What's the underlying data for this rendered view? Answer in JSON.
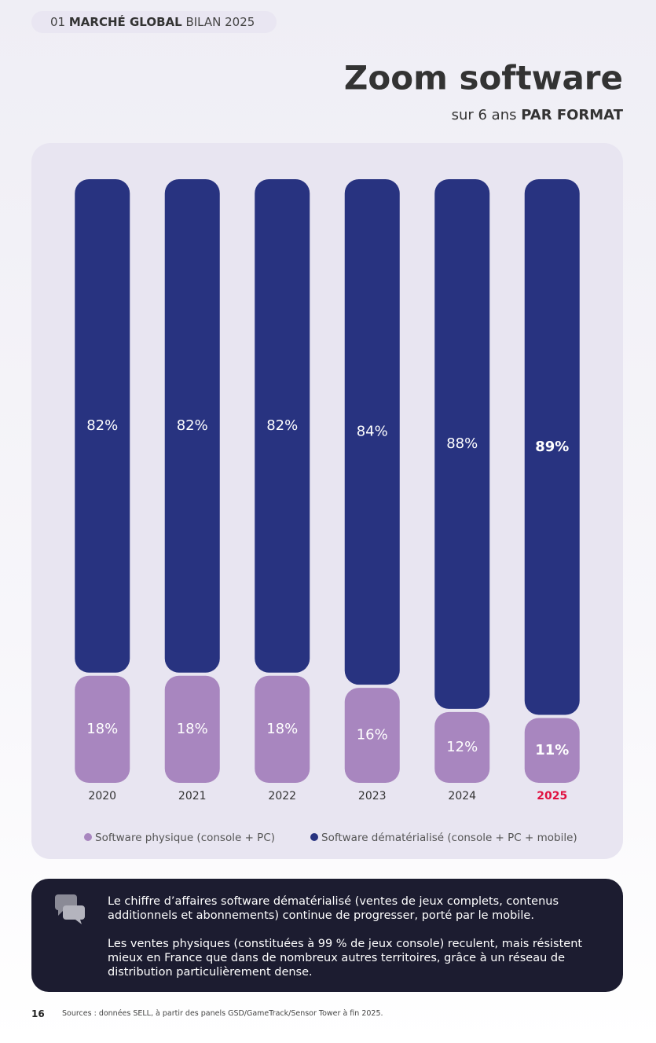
{
  "header": {
    "number": "01",
    "section": "MARCHÉ GLOBAL",
    "label": "BILAN 2025"
  },
  "chart_data": {
    "type": "stacked-bar",
    "title": "Zoom software",
    "subtitle": {
      "prefix": "sur 6 ans",
      "emphasis": "PAR FORMAT"
    },
    "categories": [
      "2020",
      "2021",
      "2022",
      "2023",
      "2024",
      "2025"
    ],
    "series": [
      {
        "name": "Software physique (console + PC)",
        "color": "#a886bf",
        "values": [
          18,
          18,
          18,
          16,
          12,
          11
        ],
        "value_labels": [
          "18%",
          "18%",
          "18%",
          "16%",
          "12%",
          "11%"
        ]
      },
      {
        "name": "Software dématérialisé (console + PC + mobile)",
        "color": "#283380",
        "values": [
          82,
          82,
          82,
          84,
          88,
          89
        ],
        "value_labels": [
          "82%",
          "82%",
          "82%",
          "84%",
          "88%",
          "89%"
        ]
      }
    ],
    "ylim": [
      0,
      100
    ]
  },
  "note": {
    "paragraphs": [
      "Le chiffre d’affaires software dématérialisé (ventes de jeux complets, contenus additionnels et abonnements) continue de progresser, porté par le mobile.",
      "Les ventes physiques (constituées à 99 % de jeux console) reculent, mais résistent mieux en France que dans de nombreux autres territoires, grâce à un réseau de distribution particulièrement dense."
    ]
  },
  "footer": {
    "page": "16",
    "sources": "Sources : données SELL, à partir des panels GSD/GameTrack/Sensor Tower à fin 2025."
  }
}
